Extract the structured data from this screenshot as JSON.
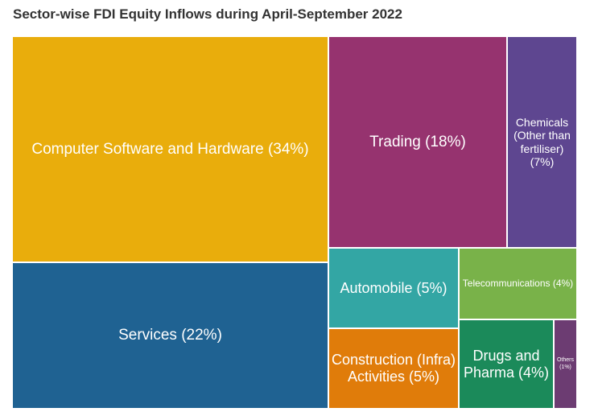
{
  "chart_data": {
    "type": "treemap",
    "title": "Sector-wise FDI Equity Inflows during April-September 2022",
    "items": [
      {
        "label": "Computer Software and Hardware (34%)",
        "share": 34,
        "color": "#E9AD0C"
      },
      {
        "label": "Services (22%)",
        "share": 22,
        "color": "#1F6292"
      },
      {
        "label": "Trading (18%)",
        "share": 18,
        "color": "#96336F"
      },
      {
        "label": "Chemicals (Other than fertiliser) (7%)",
        "share": 7,
        "color": "#5E4690"
      },
      {
        "label": "Automobile (5%)",
        "share": 5,
        "color": "#33A6A4"
      },
      {
        "label": "Telecommunications (4%)",
        "share": 4,
        "color": "#79B249"
      },
      {
        "label": "Construction (Infra) Activities (5%)",
        "share": 5,
        "color": "#E07C0A"
      },
      {
        "label": "Drugs and Pharma (4%)",
        "share": 4,
        "color": "#1B8A5A"
      },
      {
        "label": "Others (1%)",
        "share": 1,
        "color": "#6C3C72"
      }
    ]
  }
}
